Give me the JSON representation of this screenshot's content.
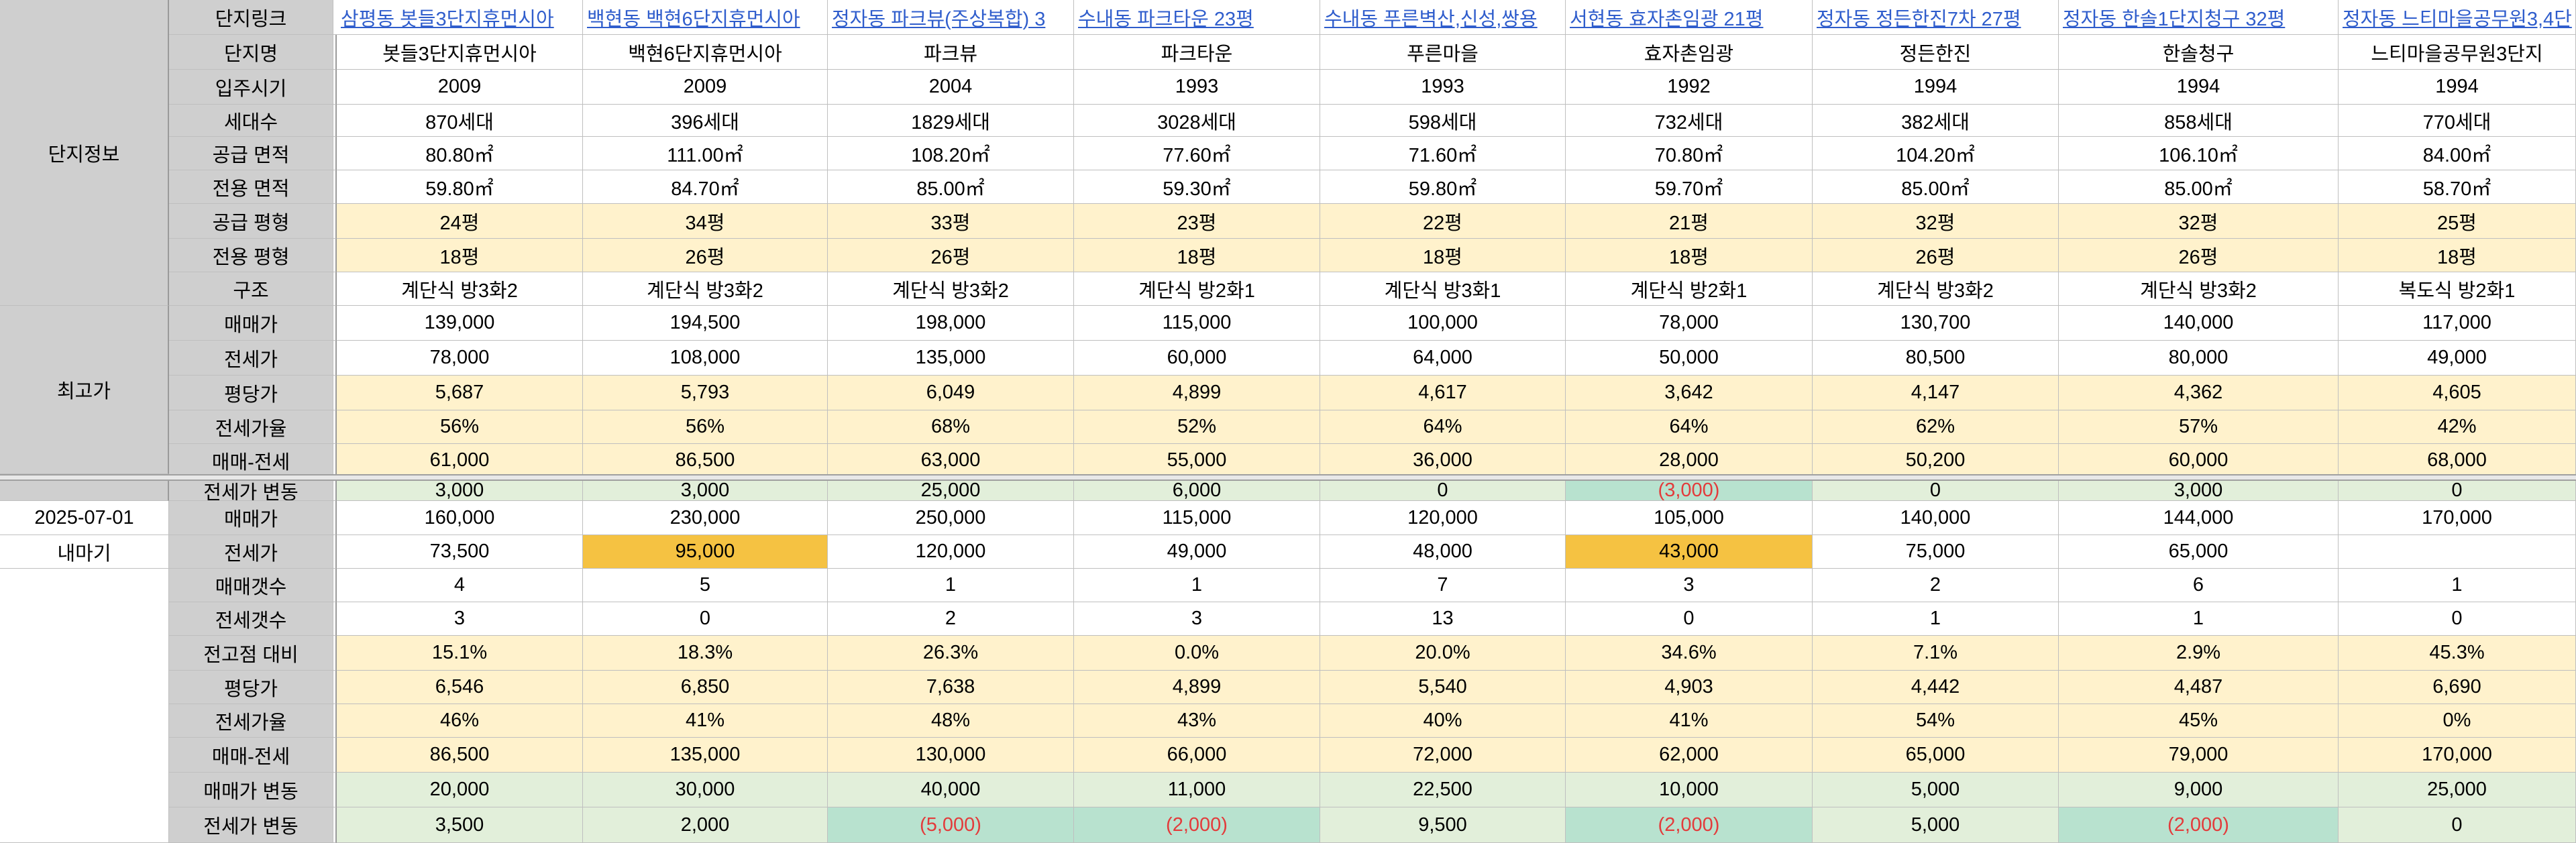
{
  "columns": [
    {
      "link": "삼평동 봇들3단지휴먼시아",
      "name": "봇들3단지휴먼시아"
    },
    {
      "link": "백현동 백현6단지휴먼시아",
      "name": "백현6단지휴먼시아"
    },
    {
      "link": "정자동 파크뷰(주상복합) 3",
      "name": "파크뷰"
    },
    {
      "link": "수내동 파크타운 23평",
      "name": "파크타운"
    },
    {
      "link": "수내동 푸른벽산,신성,쌍용",
      "name": "푸른마을"
    },
    {
      "link": "서현동 효자촌임광 21평",
      "name": "효자촌임광"
    },
    {
      "link": "정자동 정든한진7차 27평",
      "name": "정든한진"
    },
    {
      "link": "정자동 한솔1단지청구 32평",
      "name": "한솔청구"
    },
    {
      "link": "정자동 느티마을공무원3,4단",
      "name": "느티마을공무원3단지"
    }
  ],
  "partial_link": "평",
  "groups": {
    "info": "단지정보",
    "max": "최고가",
    "date": "2025-07-01",
    "direction": "내마기"
  },
  "rows": [
    {
      "label": "단지링크",
      "kind": "link"
    },
    {
      "label": "단지명",
      "kind": "name"
    },
    {
      "label": "입주시기",
      "values": [
        "2009",
        "2009",
        "2004",
        "1993",
        "1993",
        "1992",
        "1994",
        "1994",
        "1994"
      ]
    },
    {
      "label": "세대수",
      "values": [
        "870세대",
        "396세대",
        "1829세대",
        "3028세대",
        "598세대",
        "732세대",
        "382세대",
        "858세대",
        "770세대"
      ]
    },
    {
      "label": "공급 면적",
      "values": [
        "80.80㎡",
        "111.00㎡",
        "108.20㎡",
        "77.60㎡",
        "71.60㎡",
        "70.80㎡",
        "104.20㎡",
        "106.10㎡",
        "84.00㎡"
      ]
    },
    {
      "label": "전용 면적",
      "values": [
        "59.80㎡",
        "84.70㎡",
        "85.00㎡",
        "59.30㎡",
        "59.80㎡",
        "59.70㎡",
        "85.00㎡",
        "85.00㎡",
        "58.70㎡"
      ]
    },
    {
      "label": "공급 평형",
      "values": [
        "24평",
        "34평",
        "33평",
        "23평",
        "22평",
        "21평",
        "32평",
        "32평",
        "25평"
      ]
    },
    {
      "label": "전용 평형",
      "values": [
        "18평",
        "26평",
        "26평",
        "18평",
        "18평",
        "18평",
        "26평",
        "26평",
        "18평"
      ]
    },
    {
      "label": "구조",
      "values": [
        "계단식 방3화2",
        "계단식 방3화2",
        "계단식 방3화2",
        "계단식 방2화1",
        "계단식 방3화1",
        "계단식 방2화1",
        "계단식 방3화2",
        "계단식 방3화2",
        "복도식 방2화1"
      ]
    },
    {
      "label": "매매가",
      "values": [
        "139,000",
        "194,500",
        "198,000",
        "115,000",
        "100,000",
        "78,000",
        "130,700",
        "140,000",
        "117,000"
      ]
    },
    {
      "label": "전세가",
      "values": [
        "78,000",
        "108,000",
        "135,000",
        "60,000",
        "64,000",
        "50,000",
        "80,500",
        "80,000",
        "49,000"
      ]
    },
    {
      "label": "평당가",
      "values": [
        "5,687",
        "5,793",
        "6,049",
        "4,899",
        "4,617",
        "3,642",
        "4,147",
        "4,362",
        "4,605"
      ]
    },
    {
      "label": "전세가율",
      "values": [
        "56%",
        "56%",
        "68%",
        "52%",
        "64%",
        "64%",
        "62%",
        "57%",
        "42%"
      ]
    },
    {
      "label": "매매-전세",
      "values": [
        "61,000",
        "86,500",
        "63,000",
        "55,000",
        "36,000",
        "28,000",
        "50,200",
        "60,000",
        "68,000"
      ]
    },
    {
      "label": "전세가 변동",
      "values": [
        "3,000",
        "3,000",
        "25,000",
        "6,000",
        "0",
        "(3,000)",
        "0",
        "3,000",
        "0"
      ]
    },
    {
      "label": "매매가",
      "values": [
        "160,000",
        "230,000",
        "250,000",
        "115,000",
        "120,000",
        "105,000",
        "140,000",
        "144,000",
        "170,000"
      ]
    },
    {
      "label": "전세가",
      "values": [
        "73,500",
        "95,000",
        "120,000",
        "49,000",
        "48,000",
        "43,000",
        "75,000",
        "65,000",
        ""
      ]
    },
    {
      "label": "매매갯수",
      "values": [
        "4",
        "5",
        "1",
        "1",
        "7",
        "3",
        "2",
        "6",
        "1"
      ]
    },
    {
      "label": "전세갯수",
      "values": [
        "3",
        "0",
        "2",
        "3",
        "13",
        "0",
        "1",
        "1",
        "0"
      ]
    },
    {
      "label": "전고점 대비",
      "values": [
        "15.1%",
        "18.3%",
        "26.3%",
        "0.0%",
        "20.0%",
        "34.6%",
        "7.1%",
        "2.9%",
        "45.3%"
      ]
    },
    {
      "label": "평당가",
      "values": [
        "6,546",
        "6,850",
        "7,638",
        "4,899",
        "5,540",
        "4,903",
        "4,442",
        "4,487",
        "6,690"
      ]
    },
    {
      "label": "전세가율",
      "values": [
        "46%",
        "41%",
        "48%",
        "43%",
        "40%",
        "41%",
        "54%",
        "45%",
        "0%"
      ]
    },
    {
      "label": "매매-전세",
      "values": [
        "86,500",
        "135,000",
        "130,000",
        "66,000",
        "72,000",
        "62,000",
        "65,000",
        "79,000",
        "170,000"
      ]
    },
    {
      "label": "매매가 변동",
      "values": [
        "20,000",
        "30,000",
        "40,000",
        "11,000",
        "22,500",
        "10,000",
        "5,000",
        "9,000",
        "25,000"
      ]
    },
    {
      "label": "전세가 변동",
      "values": [
        "3,500",
        "2,000",
        "(5,000)",
        "(2,000)",
        "9,500",
        "(2,000)",
        "5,000",
        "(2,000)",
        "0"
      ]
    }
  ],
  "colors": {
    "header_gray": "#cfcfcf",
    "yellow": "#fff2cc",
    "green": "#e2efda",
    "gold": "#f5c242",
    "teal": "#b8e2cf",
    "negative": "#e33b3b",
    "link": "#2f5dcc"
  }
}
